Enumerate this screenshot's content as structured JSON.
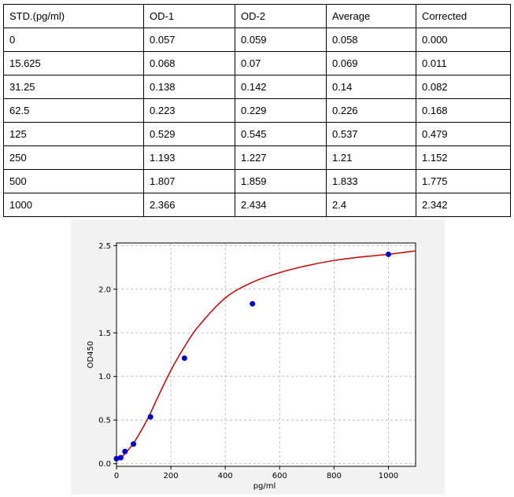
{
  "table": {
    "headers": [
      "STD.(pg/ml)",
      "OD-1",
      "OD-2",
      "Average",
      "Corrected"
    ],
    "rows": [
      [
        "0",
        "0.057",
        "0.059",
        "0.058",
        "0.000"
      ],
      [
        "15.625",
        "0.068",
        "0.07",
        "0.069",
        "0.011"
      ],
      [
        "31.25",
        "0.138",
        "0.142",
        "0.14",
        "0.082"
      ],
      [
        "62.5",
        "0.223",
        "0.229",
        "0.226",
        "0.168"
      ],
      [
        "125",
        "0.529",
        "0.545",
        "0.537",
        "0.479"
      ],
      [
        "250",
        "1.193",
        "1.227",
        "1.21",
        "1.152"
      ],
      [
        "500",
        "1.807",
        "1.859",
        "1.833",
        "1.775"
      ],
      [
        "1000",
        "2.366",
        "2.434",
        "2.4",
        "2.342"
      ]
    ]
  },
  "chart_data": {
    "type": "scatter",
    "xlabel": "pg/ml",
    "ylabel": "OD450",
    "xlim": [
      0,
      1100
    ],
    "ylim": [
      -0.03,
      2.53
    ],
    "xticks": [
      0,
      200,
      400,
      600,
      800,
      1000
    ],
    "xtick_labels": [
      "0",
      "200",
      "400",
      "600",
      "800",
      "1000"
    ],
    "yticks": [
      0.0,
      0.5,
      1.0,
      1.5,
      2.0,
      2.5
    ],
    "ytick_labels": [
      "0.0",
      "0.5",
      "1.0",
      "1.5",
      "2.0",
      "2.5"
    ],
    "grid": true,
    "points": {
      "x": [
        0,
        15.625,
        31.25,
        62.5,
        125,
        250,
        500,
        1000
      ],
      "y": [
        0.058,
        0.069,
        0.14,
        0.226,
        0.537,
        1.21,
        1.833,
        2.4
      ],
      "color": "#0000cc"
    },
    "fit_curve": {
      "color": "#cc0000",
      "x": [
        0,
        15.625,
        31.25,
        62.5,
        100,
        125,
        150,
        200,
        250,
        300,
        400,
        500,
        600,
        700,
        800,
        900,
        1000,
        1100
      ],
      "y": [
        0.058,
        0.07,
        0.115,
        0.235,
        0.43,
        0.58,
        0.75,
        1.07,
        1.34,
        1.57,
        1.9,
        2.08,
        2.19,
        2.27,
        2.33,
        2.37,
        2.4,
        2.44
      ]
    }
  }
}
